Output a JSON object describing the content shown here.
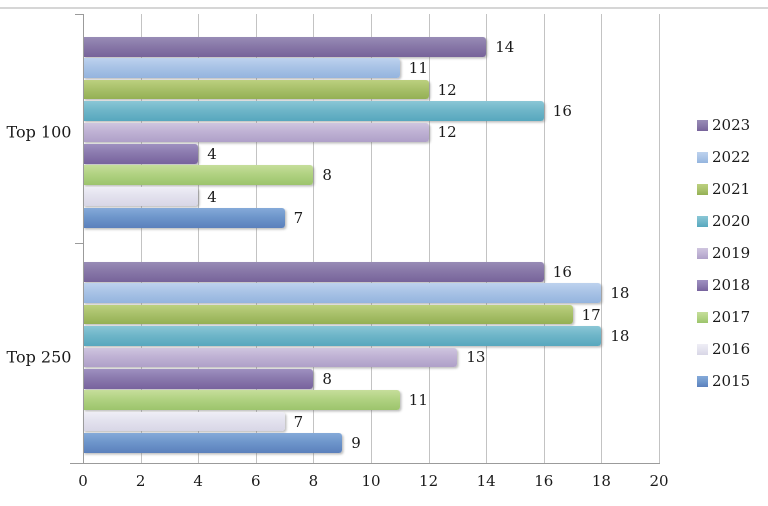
{
  "chart": {
    "background": "#FFFFFF",
    "top_border_color": "#D6D6D6",
    "gridline_color": "#C3C3C3",
    "axis_color": "#9B9B9B",
    "text_color": "#1A1A1A"
  },
  "chart_data": {
    "type": "bar",
    "orientation": "horizontal",
    "title": "",
    "xlabel": "",
    "ylabel": "",
    "xlim": [
      0,
      20
    ],
    "x_ticks": [
      0,
      2,
      4,
      6,
      8,
      10,
      12,
      14,
      16,
      18,
      20
    ],
    "grid": true,
    "data_labels": true,
    "legend_position": "right",
    "categories": [
      "Top 100",
      "Top 250"
    ],
    "series": [
      {
        "name": "2023",
        "values": [
          14,
          16
        ],
        "color": "#8878A8",
        "color_light": "#988CB6",
        "color_dark": "#77639A"
      },
      {
        "name": "2022",
        "values": [
          11,
          18
        ],
        "color": "#A9C3E6",
        "color_light": "#BDD2EE",
        "color_dark": "#94B4DE"
      },
      {
        "name": "2021",
        "values": [
          12,
          17
        ],
        "color": "#A9C16B",
        "color_light": "#BCD07F",
        "color_dark": "#94B054"
      },
      {
        "name": "2020",
        "values": [
          16,
          18
        ],
        "color": "#6FB6C9",
        "color_light": "#8BC7D6",
        "color_dark": "#57A7BE"
      },
      {
        "name": "2019",
        "values": [
          12,
          13
        ],
        "color": "#BFB2D4",
        "color_light": "#CFC5DF",
        "color_dark": "#AFA0C8"
      },
      {
        "name": "2018",
        "values": [
          4,
          8
        ],
        "color": "#8B7AAE",
        "color_light": "#9E90C0",
        "color_dark": "#77639D"
      },
      {
        "name": "2017",
        "values": [
          8,
          11
        ],
        "color": "#B1D282",
        "color_light": "#C6DE9B",
        "color_dark": "#9CC46C"
      },
      {
        "name": "2016",
        "values": [
          4,
          7
        ],
        "color": "#E3E2EE",
        "color_light": "#EFEEF6",
        "color_dark": "#D8D6E6"
      },
      {
        "name": "2015",
        "values": [
          7,
          9
        ],
        "color": "#6E96CB",
        "color_light": "#85AAD9",
        "color_dark": "#5B80BC"
      }
    ]
  }
}
